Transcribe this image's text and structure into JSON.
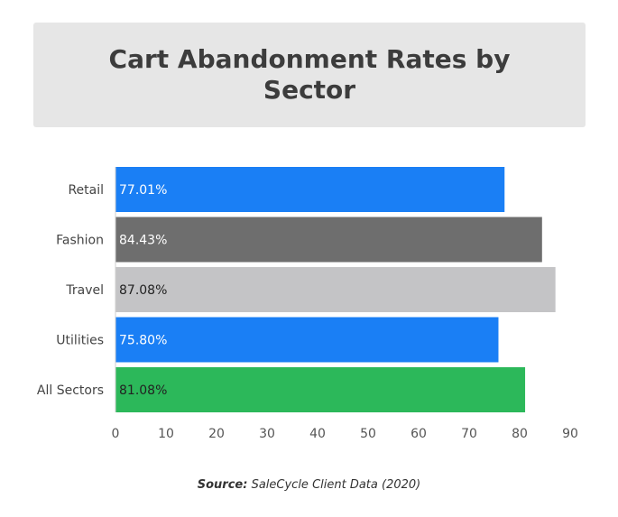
{
  "title": "Cart Abandonment Rates by Sector",
  "source": {
    "prefix": "Source:",
    "text": "SaleCycle Client Data (2020)"
  },
  "chart_data": {
    "type": "bar",
    "orientation": "horizontal",
    "categories": [
      "Retail",
      "Fashion",
      "Travel",
      "Utilities",
      "All Sectors"
    ],
    "values": [
      77.01,
      84.43,
      87.08,
      75.8,
      81.08
    ],
    "value_labels": [
      "77.01%",
      "84.43%",
      "87.08%",
      "75.80%",
      "81.08%"
    ],
    "bar_colors": [
      "#1a7ff5",
      "#6e6e6e",
      "#c4c4c6",
      "#1a7ff5",
      "#2cb85a"
    ],
    "label_colors": [
      "#ffffff",
      "#ffffff",
      "#222222",
      "#ffffff",
      "#222222"
    ],
    "xlim": [
      0,
      90
    ],
    "xticks": [
      0,
      10,
      20,
      30,
      40,
      50,
      60,
      70,
      80,
      90
    ],
    "grid": false,
    "title": "Cart Abandonment Rates by Sector",
    "xlabel": "",
    "ylabel": ""
  }
}
